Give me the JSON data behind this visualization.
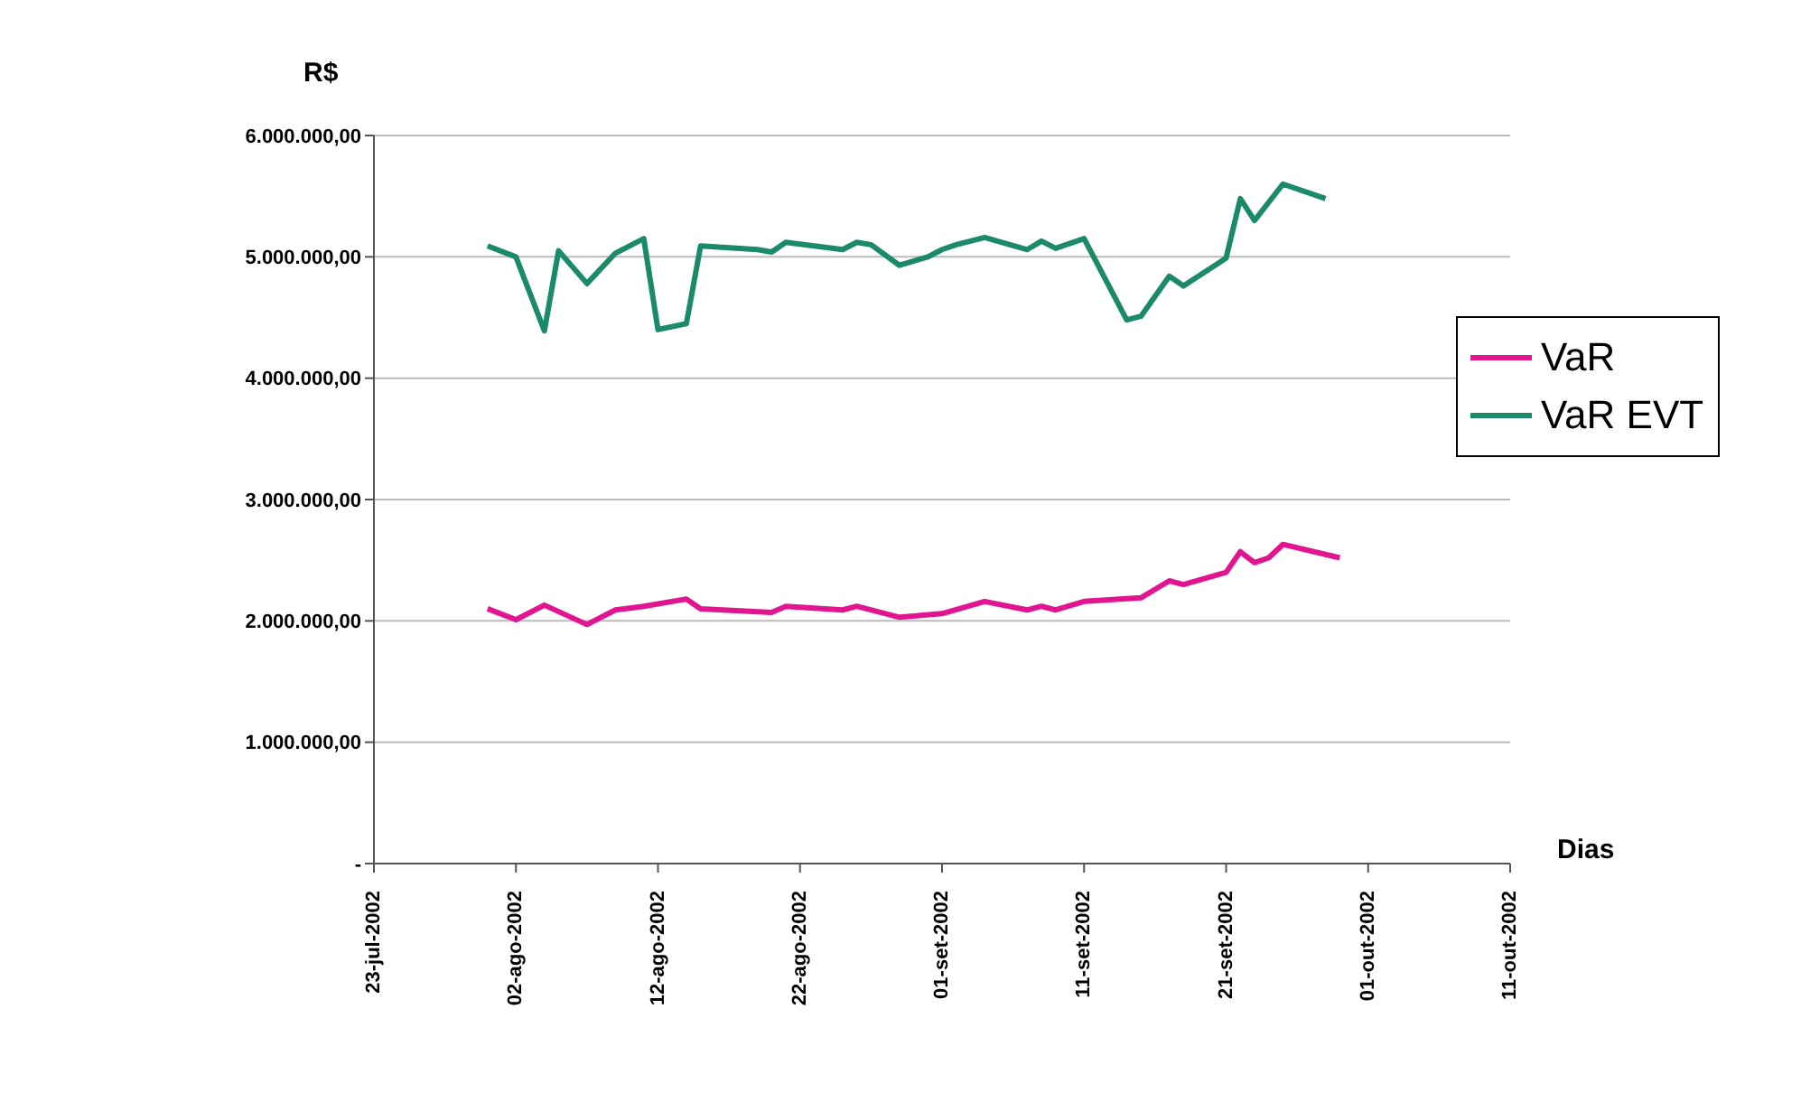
{
  "chart_data": {
    "type": "line",
    "ylabel": "R$",
    "xlabel": "Dias",
    "xlim": [
      "2002-07-23",
      "2002-10-11"
    ],
    "xticks": [
      {
        "value": "2002-07-23",
        "label": "23-jul-2002"
      },
      {
        "value": "2002-08-02",
        "label": "02-ago-2002"
      },
      {
        "value": "2002-08-12",
        "label": "12-ago-2002"
      },
      {
        "value": "2002-08-22",
        "label": "22-ago-2002"
      },
      {
        "value": "2002-09-01",
        "label": "01-set-2002"
      },
      {
        "value": "2002-09-11",
        "label": "11-set-2002"
      },
      {
        "value": "2002-09-21",
        "label": "21-set-2002"
      },
      {
        "value": "2002-10-01",
        "label": "01-out-2002"
      },
      {
        "value": "2002-10-11",
        "label": "11-out-2002"
      }
    ],
    "ylim": [
      0,
      6000000
    ],
    "yticks": [
      {
        "value": 0,
        "label": "-"
      },
      {
        "value": 1000000,
        "label": "1.000.000,00"
      },
      {
        "value": 2000000,
        "label": "2.000.000,00"
      },
      {
        "value": 3000000,
        "label": "3.000.000,00"
      },
      {
        "value": 4000000,
        "label": "4.000.000,00"
      },
      {
        "value": 5000000,
        "label": "5.000.000,00"
      },
      {
        "value": 6000000,
        "label": "6.000.000,00"
      }
    ],
    "grid": "y",
    "legend": "right",
    "series": [
      {
        "name": "VaR",
        "color": "#e0158f",
        "x": [
          "2002-07-31",
          "2002-08-02",
          "2002-08-04",
          "2002-08-07",
          "2002-08-09",
          "2002-08-11",
          "2002-08-14",
          "2002-08-15",
          "2002-08-20",
          "2002-08-21",
          "2002-08-25",
          "2002-08-26",
          "2002-08-29",
          "2002-09-01",
          "2002-09-04",
          "2002-09-07",
          "2002-09-08",
          "2002-09-09",
          "2002-09-11",
          "2002-09-15",
          "2002-09-17",
          "2002-09-18",
          "2002-09-21",
          "2002-09-22",
          "2002-09-23",
          "2002-09-24",
          "2002-09-25",
          "2002-09-29"
        ],
        "values": [
          2100000,
          2010000,
          2130000,
          1970000,
          2090000,
          2120000,
          2180000,
          2100000,
          2070000,
          2120000,
          2090000,
          2120000,
          2030000,
          2060000,
          2160000,
          2090000,
          2120000,
          2090000,
          2160000,
          2190000,
          2330000,
          2300000,
          2400000,
          2570000,
          2480000,
          2520000,
          2630000,
          2520000
        ]
      },
      {
        "name": "VaR EVT",
        "color": "#1a8a6a",
        "x": [
          "2002-07-31",
          "2002-08-02",
          "2002-08-04",
          "2002-08-05",
          "2002-08-07",
          "2002-08-09",
          "2002-08-11",
          "2002-08-12",
          "2002-08-14",
          "2002-08-15",
          "2002-08-19",
          "2002-08-20",
          "2002-08-21",
          "2002-08-25",
          "2002-08-26",
          "2002-08-27",
          "2002-08-29",
          "2002-08-31",
          "2002-09-01",
          "2002-09-02",
          "2002-09-04",
          "2002-09-07",
          "2002-09-08",
          "2002-09-09",
          "2002-09-11",
          "2002-09-14",
          "2002-09-15",
          "2002-09-17",
          "2002-09-18",
          "2002-09-21",
          "2002-09-22",
          "2002-09-23",
          "2002-09-25",
          "2002-09-28"
        ],
        "values": [
          5090000,
          5000000,
          4390000,
          5050000,
          4780000,
          5030000,
          5150000,
          4400000,
          4450000,
          5090000,
          5060000,
          5040000,
          5120000,
          5060000,
          5120000,
          5100000,
          4930000,
          5000000,
          5060000,
          5100000,
          5160000,
          5060000,
          5130000,
          5070000,
          5150000,
          4480000,
          4510000,
          4840000,
          4760000,
          4990000,
          5480000,
          5300000,
          5600000,
          5480000
        ]
      }
    ]
  }
}
